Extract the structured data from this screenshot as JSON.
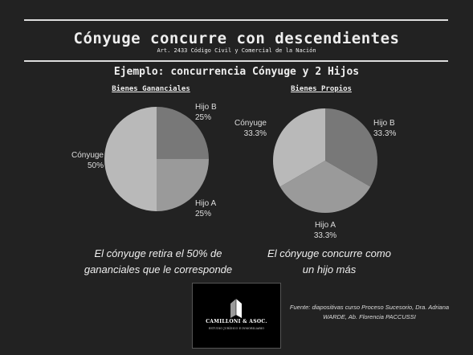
{
  "header": {
    "title": "Cónyuge concurre con descendientes",
    "subtitle": "Art. 2433 Código Civil y Comercial de la Nación",
    "example": "Ejemplo: concurrencia Cónyuge y 2 Hijos"
  },
  "chart_data": [
    {
      "type": "pie",
      "title": "Bienes Gananciales",
      "slices": [
        {
          "label": "Hijo B",
          "value": 25,
          "display": "25%",
          "color": "#787878"
        },
        {
          "label": "Hijo A",
          "value": 25,
          "display": "25%",
          "color": "#9a9a9a"
        },
        {
          "label": "Cónyuge",
          "value": 50,
          "display": "50%",
          "color": "#b9b9b9"
        }
      ]
    },
    {
      "type": "pie",
      "title": "Bienes Propios",
      "slices": [
        {
          "label": "Hijo B",
          "value": 33.3,
          "display": "33.3%",
          "color": "#787878"
        },
        {
          "label": "Hijo A",
          "value": 33.3,
          "display": "33.3%",
          "color": "#9a9a9a"
        },
        {
          "label": "Cónyuge",
          "value": 33.3,
          "display": "33.3%",
          "color": "#b9b9b9"
        }
      ]
    }
  ],
  "captions": {
    "left": "El cónyuge retira el 50% de gananciales que le corresponde",
    "right": "El cónyuge concurre como un hijo más"
  },
  "logo": {
    "name": "CAMILLONI & ASOC.",
    "tagline": "ESTUDIO JURÍDICO E INMOBILIARIO"
  },
  "source": "Fuente: diapositivas curso Proceso Sucesorio, Dra. Adriana WARDE, Ab. Florencia PACCUSSI"
}
